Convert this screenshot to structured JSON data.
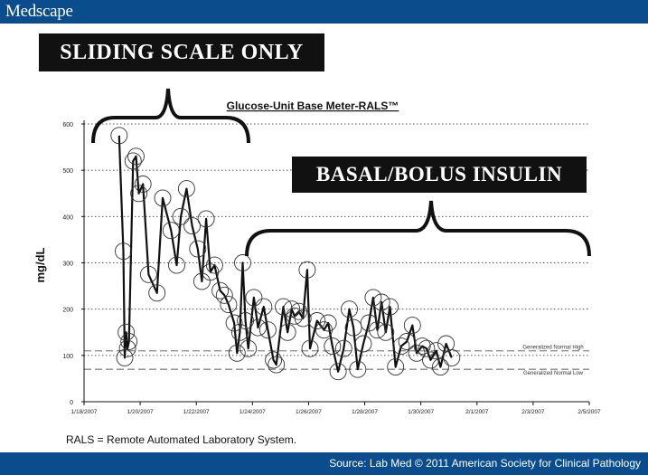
{
  "header": {
    "brand": "Medscape"
  },
  "footer": {
    "source": "Source: Lab Med © 2011 American Society for Clinical Pathology"
  },
  "annotations": {
    "sliding": "SLIDING SCALE ONLY",
    "basal": "BASAL/BOLUS INSULIN"
  },
  "footnote": "RALS = Remote Automated Laboratory System.",
  "colors": {
    "header_bar": "#0a4c8c",
    "label_bg": "#111111",
    "line": "#111111",
    "grid": "#555555",
    "ref_line": "#888888"
  },
  "chart_data": {
    "type": "line",
    "title": "Glucose-Unit Base Meter-RALS™",
    "ylabel": "mg/dL",
    "xlabel": "",
    "xlim": [
      0,
      18
    ],
    "ylim": [
      0,
      600
    ],
    "x_ticks": [
      {
        "x": 0,
        "label": "1/18/2007"
      },
      {
        "x": 2,
        "label": "1/20/2007"
      },
      {
        "x": 4,
        "label": "1/22/2007"
      },
      {
        "x": 6,
        "label": "1/24/2007"
      },
      {
        "x": 8,
        "label": "1/26/2007"
      },
      {
        "x": 10,
        "label": "1/28/2007"
      },
      {
        "x": 12,
        "label": "1/30/2007"
      },
      {
        "x": 14,
        "label": "2/1/2007"
      },
      {
        "x": 16,
        "label": "2/3/2007"
      },
      {
        "x": 18,
        "label": "2/5/2007"
      }
    ],
    "y_ticks": [
      0,
      100,
      200,
      300,
      400,
      500,
      600
    ],
    "grid": "horizontal dotted",
    "reference_lines": [
      {
        "value": 110,
        "label": "Generalized Normal High"
      },
      {
        "value": 70,
        "label": "Generalized Normal Low"
      }
    ],
    "series": [
      {
        "points": [
          [
            1.25,
            575
          ],
          [
            1.4,
            325
          ],
          [
            1.45,
            95
          ],
          [
            1.5,
            150
          ],
          [
            1.55,
            115
          ],
          [
            1.6,
            130
          ],
          [
            1.75,
            520
          ],
          [
            1.85,
            530
          ],
          [
            1.95,
            450
          ],
          [
            2.1,
            470
          ],
          [
            2.3,
            275
          ],
          [
            2.6,
            235
          ],
          [
            2.8,
            440
          ],
          [
            3.1,
            370
          ],
          [
            3.3,
            295
          ],
          [
            3.45,
            400
          ],
          [
            3.65,
            460
          ],
          [
            3.85,
            380
          ],
          [
            4.05,
            330
          ],
          [
            4.2,
            260
          ],
          [
            4.35,
            395
          ],
          [
            4.5,
            280
          ],
          [
            4.65,
            295
          ],
          [
            4.85,
            240
          ],
          [
            5.0,
            230
          ],
          [
            5.15,
            210
          ],
          [
            5.35,
            170
          ],
          [
            5.45,
            105
          ],
          [
            5.55,
            150
          ],
          [
            5.65,
            300
          ],
          [
            5.75,
            175
          ],
          [
            5.85,
            115
          ],
          [
            6.05,
            225
          ],
          [
            6.2,
            160
          ],
          [
            6.4,
            205
          ],
          [
            6.55,
            155
          ],
          [
            6.75,
            90
          ],
          [
            6.85,
            80
          ],
          [
            7.1,
            205
          ],
          [
            7.25,
            150
          ],
          [
            7.4,
            200
          ],
          [
            7.5,
            185
          ],
          [
            7.65,
            195
          ],
          [
            7.8,
            180
          ],
          [
            7.95,
            285
          ],
          [
            8.05,
            115
          ],
          [
            8.3,
            175
          ],
          [
            8.55,
            155
          ],
          [
            8.7,
            170
          ],
          [
            8.85,
            120
          ],
          [
            9.05,
            65
          ],
          [
            9.25,
            115
          ],
          [
            9.45,
            200
          ],
          [
            9.6,
            160
          ],
          [
            9.75,
            70
          ],
          [
            9.95,
            125
          ],
          [
            10.15,
            170
          ],
          [
            10.3,
            225
          ],
          [
            10.45,
            155
          ],
          [
            10.6,
            215
          ],
          [
            10.75,
            150
          ],
          [
            10.9,
            205
          ],
          [
            11.1,
            75
          ],
          [
            11.3,
            120
          ],
          [
            11.5,
            130
          ],
          [
            11.7,
            165
          ],
          [
            11.85,
            105
          ],
          [
            12.05,
            120
          ],
          [
            12.2,
            115
          ],
          [
            12.35,
            90
          ],
          [
            12.55,
            110
          ],
          [
            12.7,
            75
          ],
          [
            12.9,
            125
          ],
          [
            13.1,
            95
          ]
        ]
      }
    ]
  }
}
